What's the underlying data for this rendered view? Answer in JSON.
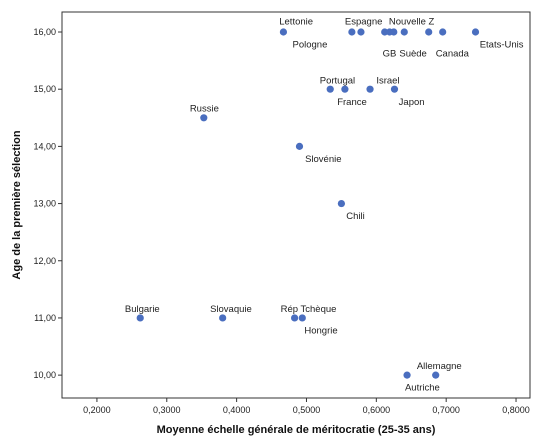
{
  "chart_data": {
    "type": "scatter",
    "title": "",
    "xlabel": "Moyenne échelle générale de méritocratie (25-35 ans)",
    "ylabel": "Age de la première sélection",
    "xlim": [
      0.15,
      0.82
    ],
    "ylim": [
      9.6,
      16.35
    ],
    "x_ticks": [
      {
        "value": 0.2,
        "label": "0,2000"
      },
      {
        "value": 0.3,
        "label": "0,3000"
      },
      {
        "value": 0.4,
        "label": "0,4000"
      },
      {
        "value": 0.5,
        "label": "0,5000"
      },
      {
        "value": 0.6,
        "label": "0,6000"
      },
      {
        "value": 0.7,
        "label": "0,7000"
      },
      {
        "value": 0.8,
        "label": "0,8000"
      }
    ],
    "y_ticks": [
      {
        "value": 10,
        "label": "10,00"
      },
      {
        "value": 11,
        "label": "11,00"
      },
      {
        "value": 12,
        "label": "12,00"
      },
      {
        "value": 13,
        "label": "13,00"
      },
      {
        "value": 14,
        "label": "14,00"
      },
      {
        "value": 15,
        "label": "15,00"
      },
      {
        "value": 16,
        "label": "16,00"
      }
    ],
    "grid": false,
    "marker_color": "#4a6ebf",
    "points": [
      {
        "x": 0.467,
        "y": 16
      },
      {
        "x": 0.565,
        "y": 16
      },
      {
        "x": 0.578,
        "y": 16
      },
      {
        "x": 0.612,
        "y": 16
      },
      {
        "x": 0.619,
        "y": 16
      },
      {
        "x": 0.625,
        "y": 16
      },
      {
        "x": 0.64,
        "y": 16
      },
      {
        "x": 0.675,
        "y": 16
      },
      {
        "x": 0.695,
        "y": 16
      },
      {
        "x": 0.742,
        "y": 16
      },
      {
        "x": 0.534,
        "y": 15
      },
      {
        "x": 0.555,
        "y": 15
      },
      {
        "x": 0.591,
        "y": 15
      },
      {
        "x": 0.626,
        "y": 15
      },
      {
        "x": 0.353,
        "y": 14.5
      },
      {
        "x": 0.49,
        "y": 14
      },
      {
        "x": 0.55,
        "y": 13
      },
      {
        "x": 0.262,
        "y": 11
      },
      {
        "x": 0.38,
        "y": 11
      },
      {
        "x": 0.483,
        "y": 11
      },
      {
        "x": 0.494,
        "y": 11
      },
      {
        "x": 0.644,
        "y": 10
      },
      {
        "x": 0.685,
        "y": 10
      }
    ],
    "annotations": [
      {
        "text": "Lettonie",
        "x": 0.461,
        "y": 16.18,
        "anchor": "start"
      },
      {
        "text": "Espagne",
        "x": 0.555,
        "y": 16.18,
        "anchor": "start"
      },
      {
        "text": "Nouvelle Z",
        "x": 0.618,
        "y": 16.18,
        "anchor": "start"
      },
      {
        "text": "Pologne",
        "x": 0.48,
        "y": 15.78,
        "anchor": "start"
      },
      {
        "text": "GB",
        "x": 0.609,
        "y": 15.62,
        "anchor": "start"
      },
      {
        "text": "Suède",
        "x": 0.633,
        "y": 15.62,
        "anchor": "start"
      },
      {
        "text": "Canada",
        "x": 0.685,
        "y": 15.62,
        "anchor": "start"
      },
      {
        "text": "Etats-Unis",
        "x": 0.748,
        "y": 15.78,
        "anchor": "start"
      },
      {
        "text": "Portugal",
        "x": 0.519,
        "y": 15.15,
        "anchor": "start"
      },
      {
        "text": "Israel",
        "x": 0.6,
        "y": 15.15,
        "anchor": "start"
      },
      {
        "text": "France",
        "x": 0.544,
        "y": 14.78,
        "anchor": "start"
      },
      {
        "text": "Japon",
        "x": 0.632,
        "y": 14.78,
        "anchor": "start"
      },
      {
        "text": "Russie",
        "x": 0.333,
        "y": 14.66,
        "anchor": "start"
      },
      {
        "text": "Slovénie",
        "x": 0.498,
        "y": 13.78,
        "anchor": "start"
      },
      {
        "text": "Chili",
        "x": 0.557,
        "y": 12.78,
        "anchor": "start"
      },
      {
        "text": "Bulgarie",
        "x": 0.24,
        "y": 11.16,
        "anchor": "start"
      },
      {
        "text": "Slovaquie",
        "x": 0.362,
        "y": 11.16,
        "anchor": "start"
      },
      {
        "text": "Rép Tchèque",
        "x": 0.463,
        "y": 11.16,
        "anchor": "start"
      },
      {
        "text": "Hongrie",
        "x": 0.497,
        "y": 10.78,
        "anchor": "start"
      },
      {
        "text": "Allemagne",
        "x": 0.658,
        "y": 10.16,
        "anchor": "start"
      },
      {
        "text": "Autriche",
        "x": 0.641,
        "y": 9.78,
        "anchor": "start"
      }
    ]
  }
}
